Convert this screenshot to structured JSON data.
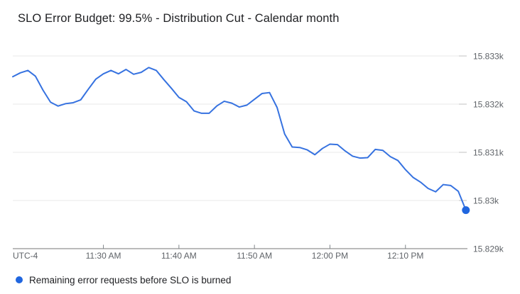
{
  "header": {
    "title": "SLO Error Budget: 99.5% - Distribution Cut - Calendar month"
  },
  "legend": {
    "series_label": "Remaining error requests before SLO is burned"
  },
  "chart_data": {
    "type": "line",
    "title": "SLO Error Budget: 99.5% - Distribution Cut - Calendar month",
    "timezone": "UTC-4",
    "grid": "horizontal",
    "legend_position": "bottom",
    "x_range": [
      "11:18 AM",
      "12:18 PM"
    ],
    "ylim": [
      15828.97,
      15833.28
    ],
    "y_ticks": [
      {
        "label": "15.833k",
        "value": 15833
      },
      {
        "label": "15.832k",
        "value": 15832
      },
      {
        "label": "15.831k",
        "value": 15831
      },
      {
        "label": "15.83k",
        "value": 15830
      },
      {
        "label": "15.829k",
        "value": 15829
      }
    ],
    "x_tick_labels": [
      "11:30 AM",
      "11:40 AM",
      "11:50 AM",
      "12:00 PM",
      "12:10 PM"
    ],
    "x_tick_minutes": [
      12,
      22,
      32,
      42,
      52
    ],
    "x": [
      "11:18 AM",
      "11:19 AM",
      "11:20 AM",
      "11:21 AM",
      "11:22 AM",
      "11:23 AM",
      "11:24 AM",
      "11:25 AM",
      "11:26 AM",
      "11:27 AM",
      "11:28 AM",
      "11:29 AM",
      "11:30 AM",
      "11:31 AM",
      "11:32 AM",
      "11:33 AM",
      "11:34 AM",
      "11:35 AM",
      "11:36 AM",
      "11:37 AM",
      "11:38 AM",
      "11:39 AM",
      "11:40 AM",
      "11:41 AM",
      "11:42 AM",
      "11:43 AM",
      "11:44 AM",
      "11:45 AM",
      "11:46 AM",
      "11:47 AM",
      "11:48 AM",
      "11:49 AM",
      "11:50 AM",
      "11:51 AM",
      "11:52 AM",
      "11:53 AM",
      "11:54 AM",
      "11:55 AM",
      "11:56 AM",
      "11:57 AM",
      "11:58 AM",
      "11:59 AM",
      "12:00 PM",
      "12:01 PM",
      "12:02 PM",
      "12:03 PM",
      "12:04 PM",
      "12:05 PM",
      "12:06 PM",
      "12:07 PM",
      "12:08 PM",
      "12:09 PM",
      "12:10 PM",
      "12:11 PM",
      "12:12 PM",
      "12:13 PM",
      "12:14 PM",
      "12:15 PM",
      "12:16 PM",
      "12:17 PM",
      "12:18 PM"
    ],
    "series": [
      {
        "name": "Remaining error requests before SLO is burned",
        "color": "#3672e0",
        "values": [
          15832.57,
          15832.65,
          15832.7,
          15832.58,
          15832.29,
          15832.04,
          15831.96,
          15832.01,
          15832.03,
          15832.09,
          15832.31,
          15832.52,
          15832.63,
          15832.7,
          15832.63,
          15832.72,
          15832.62,
          15832.66,
          15832.76,
          15832.7,
          15832.51,
          15832.33,
          15832.14,
          15832.05,
          15831.86,
          15831.81,
          15831.81,
          15831.96,
          15832.06,
          15832.02,
          15831.94,
          15831.98,
          15832.1,
          15832.22,
          15832.24,
          15831.93,
          15831.38,
          15831.11,
          15831.1,
          15831.05,
          15830.95,
          15831.08,
          15831.17,
          15831.16,
          15831.03,
          15830.92,
          15830.88,
          15830.89,
          15831.06,
          15831.04,
          15830.91,
          15830.83,
          15830.64,
          15830.48,
          15830.38,
          15830.25,
          15830.18,
          15830.33,
          15830.31,
          15830.19,
          15829.8
        ]
      }
    ],
    "end_marker": {
      "color": "#2066df",
      "at": "12:18 PM",
      "value": 15829.8
    }
  }
}
